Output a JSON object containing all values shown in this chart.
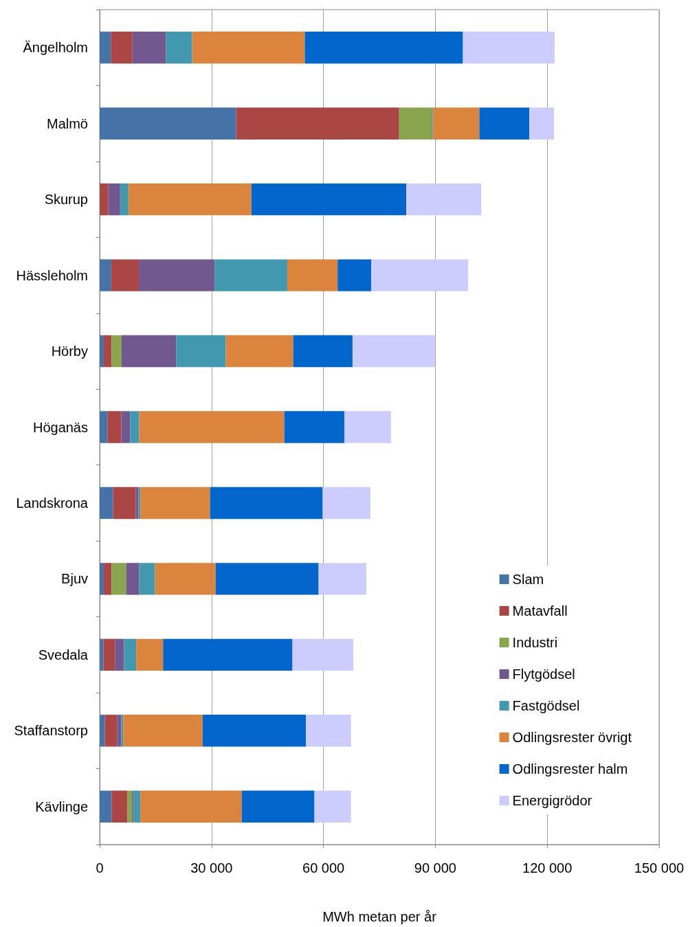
{
  "chart_data": {
    "type": "bar",
    "orientation": "horizontal",
    "stacked": true,
    "categories": [
      "Ängelholm",
      "Malmö",
      "Skurup",
      "Hässleholm",
      "Hörby",
      "Höganäs",
      "Landskrona",
      "Bjuv",
      "Svedala",
      "Staffanstorp",
      "Kävlinge"
    ],
    "series": [
      {
        "name": "Slam",
        "color": "#4572a7",
        "values": [
          3000,
          36600,
          null,
          3100,
          1100,
          2100,
          3600,
          1100,
          1000,
          1400,
          3200
        ]
      },
      {
        "name": "Matavfall",
        "color": "#aa4643",
        "values": [
          5800,
          43700,
          2300,
          7400,
          2100,
          3700,
          6100,
          2100,
          3100,
          3300,
          4200
        ]
      },
      {
        "name": "Industri",
        "color": "#89a54e",
        "values": [
          null,
          8700,
          null,
          null,
          2700,
          null,
          null,
          3900,
          null,
          null,
          1300
        ]
      },
      {
        "name": "Flytgödsel",
        "color": "#71588f",
        "values": [
          9000,
          null,
          3200,
          20300,
          14600,
          2400,
          700,
          3500,
          2400,
          1100,
          400
        ]
      },
      {
        "name": "Fastgödsel",
        "color": "#4198af",
        "values": [
          7000,
          300,
          2200,
          19500,
          13300,
          2400,
          500,
          4200,
          3300,
          500,
          1800
        ]
      },
      {
        "name": "Odlingsrester övrigt",
        "color": "#db843d",
        "values": [
          30200,
          12500,
          33000,
          13500,
          18100,
          38900,
          18700,
          16300,
          7200,
          21300,
          27200
        ]
      },
      {
        "name": "Odlingsrester halm",
        "color": "#0366cc",
        "values": [
          42400,
          13400,
          41500,
          9000,
          15900,
          16100,
          30200,
          27600,
          34700,
          27700,
          19500
        ]
      },
      {
        "name": "Energigrödor",
        "color": "#ccccff",
        "values": [
          24600,
          6600,
          20100,
          26000,
          22100,
          12500,
          12800,
          12800,
          16300,
          12100,
          9800
        ]
      }
    ],
    "xlabel": "MWh metan per år",
    "xlim": [
      0,
      150000
    ],
    "xticks": [
      0,
      {
        "value": 30000,
        "label": "30 000"
      },
      {
        "value": 60000,
        "label": "60 000"
      },
      {
        "value": 90000,
        "label": "90 000"
      },
      {
        "value": 120000,
        "label": "120 000"
      },
      {
        "value": 150000,
        "label": "150 000"
      }
    ],
    "grid": "x",
    "legend": "bottom right"
  }
}
